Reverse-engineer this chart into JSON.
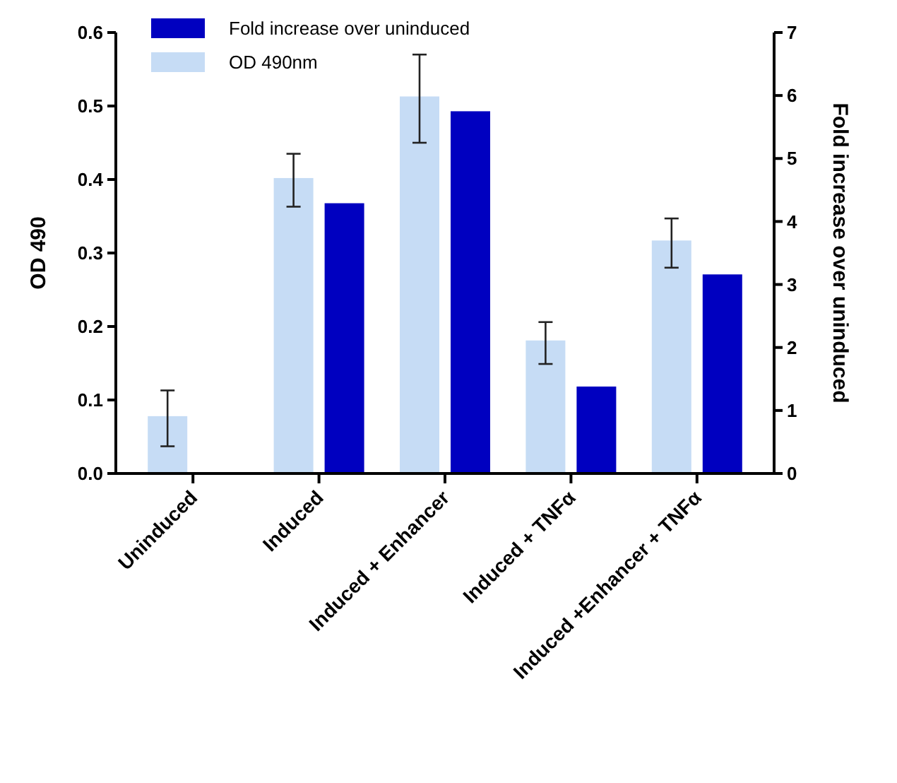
{
  "chart_data": {
    "type": "bar",
    "categories": [
      "Uninduced",
      "Induced",
      "Induced + Enhancer",
      "Induced + TNFα",
      "Induced +Enhancer + TNFα"
    ],
    "series": [
      {
        "name": "OD 490nm",
        "color": "#c6dcf5",
        "values": [
          0.078,
          0.402,
          0.513,
          0.181,
          0.317
        ],
        "errors": [
          [
            0.037,
            0.113
          ],
          [
            0.363,
            0.435
          ],
          [
            0.45,
            0.57
          ],
          [
            0.149,
            0.206
          ],
          [
            0.28,
            0.347
          ]
        ]
      },
      {
        "name": "Fold increase over uninduced",
        "color": "#0000c0",
        "axis": "y2",
        "values": [
          null,
          4.29,
          5.75,
          1.38,
          3.16
        ]
      }
    ],
    "ylabel": "OD 490",
    "y2label": "Fold increase over uninduced",
    "ylim": [
      0,
      0.6
    ],
    "yticks": [
      "0.0",
      0.1,
      0.2,
      0.3,
      0.4,
      0.5,
      0.6
    ],
    "y2lim": [
      0,
      7
    ],
    "y2ticks": [
      0,
      1,
      2,
      3,
      4,
      5,
      6,
      7
    ],
    "legend": "top left",
    "grid": false
  }
}
